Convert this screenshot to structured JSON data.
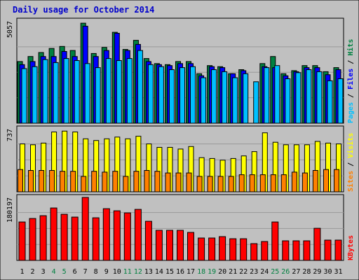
{
  "title": "Daily usage for October 2014",
  "colors": {
    "background": "#c0c0c0",
    "plot_bg": "#c0c0c0",
    "frame": "#000000",
    "title": "#0000cc",
    "hits": "#008040",
    "files": "#0000ff",
    "pages": "#00c0ff",
    "visits": "#ffff00",
    "sites": "#ff8000",
    "kbytes": "#ff0000",
    "weekend_label": "#008040",
    "weekday_label": "#000000"
  },
  "chart_data": [
    {
      "type": "bar",
      "name": "hits-files-pages",
      "ymax_label": "5057",
      "ylim": [
        0,
        5057
      ],
      "legend": [
        "Pages",
        "Files",
        "Hits"
      ],
      "categories": [
        "1",
        "2",
        "3",
        "4",
        "5",
        "6",
        "7",
        "8",
        "9",
        "10",
        "11",
        "12",
        "13",
        "14",
        "15",
        "16",
        "17",
        "18",
        "19",
        "20",
        "21",
        "22",
        "23",
        "24",
        "25",
        "26",
        "27",
        "28",
        "29",
        "30",
        "31"
      ],
      "series": [
        {
          "name": "Hits",
          "values": [
            3050,
            3300,
            3500,
            3700,
            3800,
            3600,
            4950,
            3450,
            3750,
            4500,
            3650,
            4100,
            3200,
            2950,
            2900,
            3050,
            3050,
            2450,
            2850,
            2800,
            2450,
            2650,
            0,
            2950,
            3300,
            2450,
            2600,
            2850,
            2850,
            2550,
            2750
          ]
        },
        {
          "name": "Files",
          "values": [
            2900,
            3050,
            3300,
            3300,
            3550,
            3300,
            4800,
            3300,
            3600,
            4450,
            3600,
            3900,
            3050,
            2900,
            2850,
            2950,
            2950,
            2350,
            2800,
            2750,
            2450,
            2600,
            0,
            2800,
            2750,
            2350,
            2550,
            2750,
            2750,
            2400,
            2650
          ]
        },
        {
          "name": "Pages",
          "values": [
            2700,
            2800,
            3150,
            3000,
            3200,
            3100,
            2950,
            2750,
            3200,
            3100,
            3200,
            3600,
            2900,
            2800,
            2650,
            2750,
            2800,
            2250,
            2650,
            2550,
            2250,
            2450,
            2050,
            2750,
            2850,
            2200,
            2500,
            2650,
            2550,
            2100,
            2200
          ]
        }
      ]
    },
    {
      "type": "bar",
      "name": "visits-sites",
      "ymax_label": "737",
      "ylim": [
        0,
        737
      ],
      "legend": [
        "Sites",
        "Visits"
      ],
      "categories": [
        "1",
        "2",
        "3",
        "4",
        "5",
        "6",
        "7",
        "8",
        "9",
        "10",
        "11",
        "12",
        "13",
        "14",
        "15",
        "16",
        "17",
        "18",
        "19",
        "20",
        "21",
        "22",
        "23",
        "24",
        "25",
        "26",
        "27",
        "28",
        "29",
        "30",
        "31"
      ],
      "series": [
        {
          "name": "Visits",
          "values": [
            560,
            550,
            570,
            700,
            710,
            700,
            620,
            600,
            620,
            640,
            620,
            650,
            560,
            520,
            520,
            500,
            530,
            400,
            390,
            370,
            390,
            420,
            470,
            690,
            580,
            550,
            550,
            550,
            590,
            570,
            560
          ]
        },
        {
          "name": "Sites",
          "values": [
            260,
            250,
            250,
            250,
            240,
            240,
            180,
            240,
            230,
            240,
            180,
            240,
            250,
            240,
            220,
            220,
            220,
            180,
            180,
            180,
            180,
            200,
            200,
            200,
            200,
            200,
            230,
            220,
            250,
            260,
            260
          ]
        }
      ]
    },
    {
      "type": "bar",
      "name": "kbytes",
      "ymax_label": "180197",
      "ylim": [
        0,
        180197
      ],
      "legend": [
        "KBytes"
      ],
      "categories": [
        "1",
        "2",
        "3",
        "4",
        "5",
        "6",
        "7",
        "8",
        "9",
        "10",
        "11",
        "12",
        "13",
        "14",
        "15",
        "16",
        "17",
        "18",
        "19",
        "20",
        "21",
        "22",
        "23",
        "24",
        "25",
        "26",
        "27",
        "28",
        "29",
        "30",
        "31"
      ],
      "series": [
        {
          "name": "KBytes",
          "values": [
            110000,
            120000,
            128000,
            150000,
            132000,
            124000,
            180197,
            122000,
            148000,
            142000,
            136000,
            146000,
            112000,
            86000,
            86000,
            86000,
            80000,
            64000,
            64000,
            68000,
            62000,
            62000,
            48000,
            54000,
            110000,
            56000,
            56000,
            56000,
            92000,
            58000,
            58000
          ]
        }
      ]
    }
  ]
}
